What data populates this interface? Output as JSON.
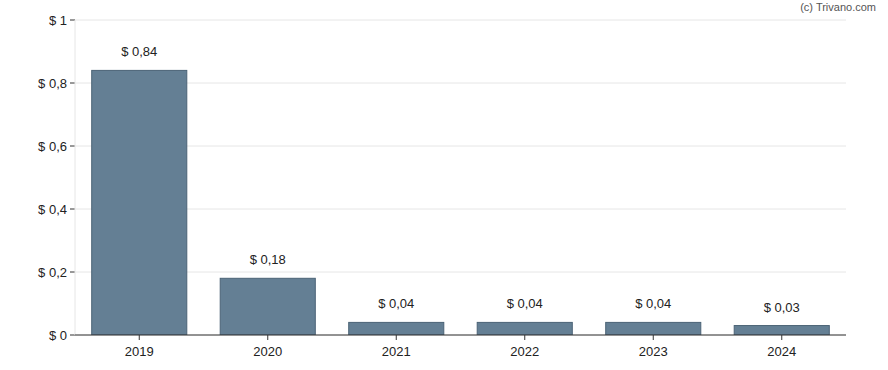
{
  "chart_data": {
    "type": "bar",
    "source": "(c) Trivano.com",
    "categories": [
      "2019",
      "2020",
      "2021",
      "2022",
      "2023",
      "2024"
    ],
    "values": [
      0.84,
      0.18,
      0.04,
      0.04,
      0.04,
      0.03
    ],
    "value_labels": [
      "$ 0,84",
      "$ 0,18",
      "$ 0,04",
      "$ 0,04",
      "$ 0,04",
      "$ 0,03"
    ],
    "data_labels": true,
    "color": "#647f94",
    "ylim": [
      0,
      1
    ],
    "yticks": [
      {
        "value": 0,
        "label": "$ 0"
      },
      {
        "value": 0.2,
        "label": "$ 0,2"
      },
      {
        "value": 0.4,
        "label": "$ 0,4"
      },
      {
        "value": 0.6,
        "label": "$ 0,6"
      },
      {
        "value": 0.8,
        "label": "$ 0,8"
      },
      {
        "value": 1,
        "label": "$ 1"
      }
    ],
    "grid": true
  }
}
